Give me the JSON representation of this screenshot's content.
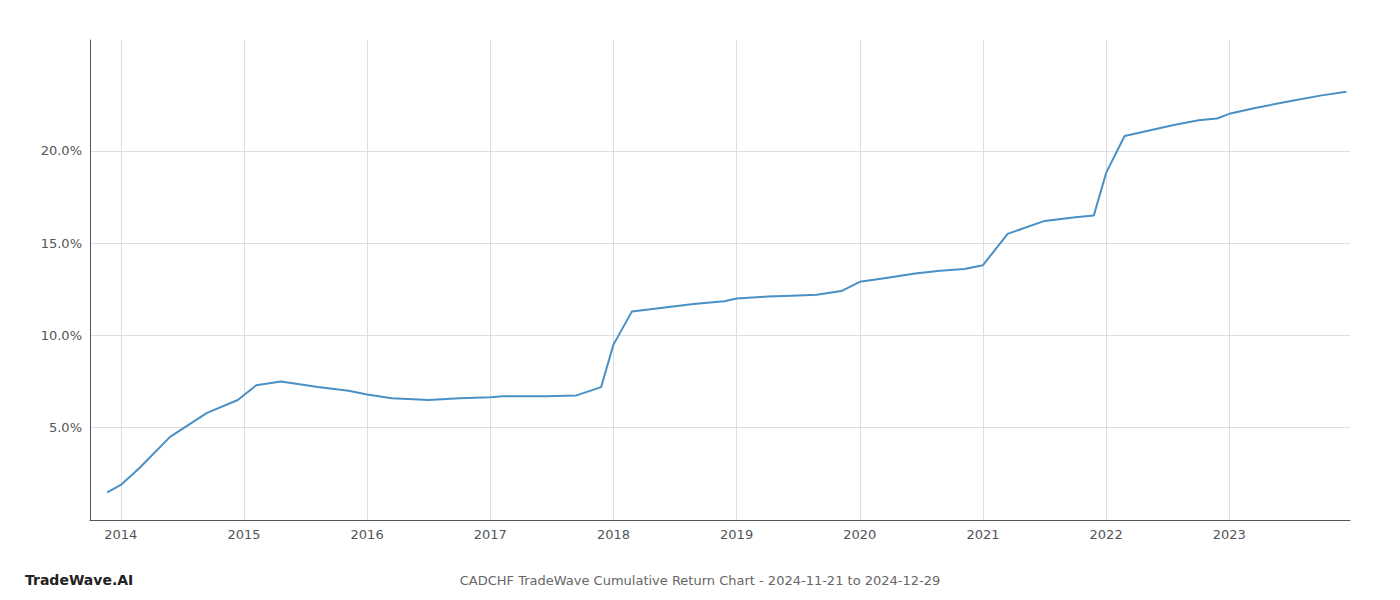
{
  "chart_data": {
    "type": "line",
    "title": "CADCHF TradeWave Cumulative Return Chart - 2024-11-21 to 2024-12-29",
    "annotations": [
      "TradeWave.AI"
    ],
    "color": "#4a90c4",
    "x": [
      2013.89,
      2014.0,
      2014.15,
      2014.4,
      2014.7,
      2014.95,
      2015.1,
      2015.3,
      2015.6,
      2015.85,
      2016.0,
      2016.2,
      2016.5,
      2016.75,
      2017.0,
      2017.1,
      2017.45,
      2017.7,
      2017.9,
      2018.0,
      2018.15,
      2018.4,
      2018.65,
      2018.9,
      2019.0,
      2019.25,
      2019.45,
      2019.65,
      2019.85,
      2020.0,
      2020.2,
      2020.45,
      2020.65,
      2020.85,
      2021.0,
      2021.2,
      2021.5,
      2021.75,
      2021.9,
      2022.0,
      2022.15,
      2022.35,
      2022.55,
      2022.75,
      2022.9,
      2023.0,
      2023.2,
      2023.5,
      2023.75,
      2023.95
    ],
    "values": [
      1.5,
      1.9,
      2.8,
      4.5,
      5.8,
      6.5,
      7.3,
      7.5,
      7.2,
      7.0,
      6.8,
      6.6,
      6.5,
      6.6,
      6.65,
      6.7,
      6.7,
      6.75,
      7.2,
      9.5,
      11.3,
      11.5,
      11.7,
      11.85,
      12.0,
      12.1,
      12.15,
      12.2,
      12.4,
      12.9,
      13.1,
      13.35,
      13.5,
      13.6,
      13.8,
      15.5,
      16.2,
      16.4,
      16.5,
      18.8,
      20.8,
      21.1,
      21.4,
      21.65,
      21.75,
      22.0,
      22.3,
      22.7,
      23.0,
      23.2
    ],
    "xlim": [
      2013.75,
      2023.98
    ],
    "ylim": [
      0,
      26
    ],
    "xticks": [
      2014,
      2015,
      2016,
      2017,
      2018,
      2019,
      2020,
      2021,
      2022,
      2023
    ],
    "yticks": [
      {
        "value": 5.0,
        "label": "5.0%"
      },
      {
        "value": 10.0,
        "label": "10.0%"
      },
      {
        "value": 15.0,
        "label": "15.0%"
      },
      {
        "value": 20.0,
        "label": "20.0%"
      }
    ],
    "grid": true
  }
}
